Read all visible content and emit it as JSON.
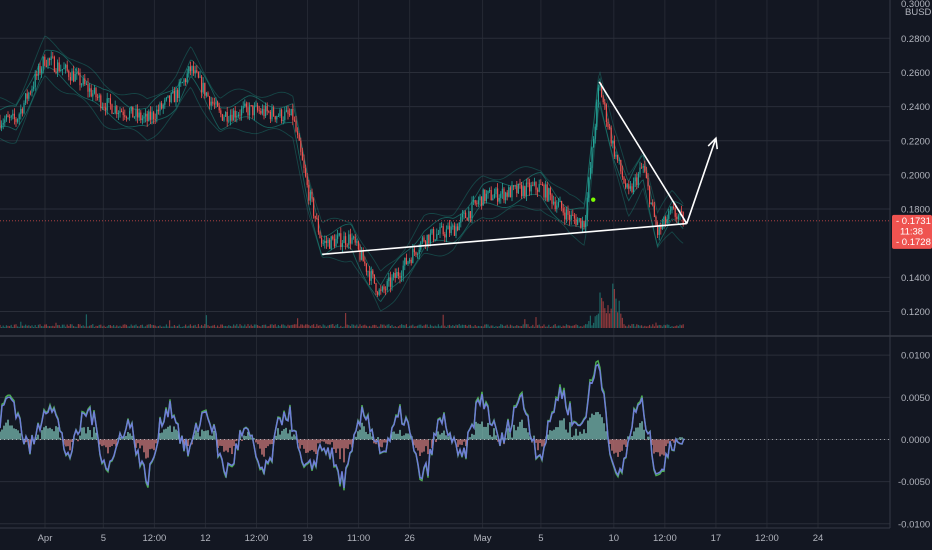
{
  "currency": "BUSD",
  "colors": {
    "background": "#131722",
    "grid": "#2a2e39",
    "up": "#26a69a",
    "down": "#ef5350",
    "band": "#1c9b8a",
    "price_tag": "#ef5350",
    "annotation": "#ffffff",
    "osc_line": "#6f7fd6",
    "osc_signal": "#4caf50"
  },
  "time_axis": {
    "labels": [
      "Apr",
      "5",
      "12:00",
      "12",
      "12:00",
      "19",
      "11:00",
      "26",
      "May",
      "5",
      "10",
      "12:00",
      "17",
      "12:00",
      "24"
    ]
  },
  "price_axis": {
    "labels": [
      "0.2800",
      "0.2600",
      "0.2400",
      "0.2200",
      "0.2000",
      "0.1800",
      "0.1400",
      "0.1200"
    ],
    "partial_top_label": "0.3000"
  },
  "price_tags": {
    "last_price": "0.1731",
    "countdown": "11:38",
    "second_price": "0.1728"
  },
  "oscillator_axis": {
    "labels": [
      "0.0100",
      "0.0050",
      "0.0000",
      "-0.0050",
      "-0.0100"
    ]
  },
  "chart_data": [
    {
      "type": "candlestick",
      "title": "",
      "ylabel": "BUSD",
      "ylim": [
        0.108,
        0.2995
      ],
      "price_path": {
        "x": [
          "Mar 30",
          "Apr 1",
          "Apr 3",
          "Apr 5",
          "Apr 8",
          "Apr 10",
          "Apr 11",
          "Apr 13",
          "Apr 15",
          "Apr 18",
          "Apr 19",
          "Apr 20",
          "Apr 22",
          "Apr 24",
          "Apr 25",
          "Apr 27",
          "Apr 29",
          "May 1",
          "May 3",
          "May 5",
          "May 7",
          "May 8",
          "May 9",
          "May 10",
          "May 11",
          "May 12",
          "May 13",
          "May 14",
          "May 15"
        ],
        "close": [
          0.232,
          0.268,
          0.258,
          0.242,
          0.232,
          0.247,
          0.262,
          0.235,
          0.238,
          0.234,
          0.192,
          0.16,
          0.163,
          0.13,
          0.14,
          0.163,
          0.168,
          0.187,
          0.19,
          0.193,
          0.175,
          0.172,
          0.253,
          0.215,
          0.188,
          0.205,
          0.166,
          0.178,
          0.172
        ]
      },
      "volume": {
        "spikes_at": [
          "May 9",
          "May 10"
        ],
        "description_level": "mostly low with spikes near May 9"
      }
    },
    {
      "type": "line",
      "title": "",
      "ylim": [
        -0.0105,
        0.0118
      ],
      "series": [
        {
          "x": [
            "Mar 30",
            "Apr 3",
            "Apr 8",
            "Apr 10",
            "Apr 15",
            "Apr 18",
            "Apr 20",
            "Apr 24",
            "Apr 27",
            "May 2",
            "May 5",
            "May 9",
            "May 10",
            "May 12",
            "May 14",
            "May 15"
          ],
          "values": [
            0.004,
            0.002,
            -0.003,
            0.004,
            -0.004,
            0.002,
            -0.007,
            0.003,
            -0.003,
            0.005,
            0.002,
            0.011,
            -0.004,
            0.003,
            -0.005,
            -0.003
          ]
        }
      ]
    }
  ],
  "annotations": {
    "support_line": {
      "from": [
        "Apr 20",
        0.1535
      ],
      "to": [
        "May 15",
        0.1715
      ]
    },
    "resistance_line": {
      "from": [
        "May 9",
        0.2545
      ],
      "to": [
        "May 15",
        0.1715
      ]
    },
    "projection_arrow": {
      "from": [
        "May 15",
        0.1715
      ],
      "to": [
        "May 17",
        0.2215
      ]
    }
  }
}
